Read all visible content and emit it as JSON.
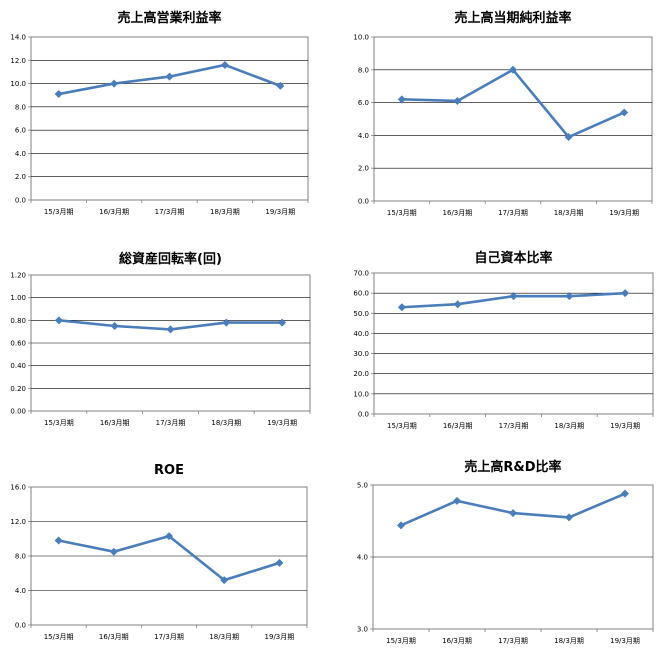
{
  "colors": {
    "series": "#4a7ebb",
    "grid": "#000000",
    "axis": "#808080"
  },
  "chart_data": [
    {
      "type": "line",
      "title": "売上高営業利益率",
      "categories": [
        "15/3月期",
        "16/3月期",
        "17/3月期",
        "18/3月期",
        "19/3月期"
      ],
      "series": [
        {
          "values": [
            9.1,
            10.0,
            10.6,
            11.6,
            9.8
          ]
        }
      ],
      "ylim": [
        0,
        14
      ],
      "yticks": [
        "0.0",
        "2.0",
        "4.0",
        "6.0",
        "8.0",
        "10.0",
        "12.0",
        "14.0"
      ],
      "grid": true
    },
    {
      "type": "line",
      "title": "売上高当期純利益率",
      "categories": [
        "15/3月期",
        "16/3月期",
        "17/3月期",
        "18/3月期",
        "19/3月期"
      ],
      "series": [
        {
          "values": [
            6.2,
            6.1,
            8.0,
            3.9,
            5.4
          ]
        }
      ],
      "ylim": [
        0,
        10
      ],
      "yticks": [
        "0.0",
        "2.0",
        "4.0",
        "6.0",
        "8.0",
        "10.0"
      ],
      "grid": true
    },
    {
      "type": "line",
      "title": "総資産回転率(回)",
      "categories": [
        "15/3月期",
        "16/3月期",
        "17/3月期",
        "18/3月期",
        "19/3月期"
      ],
      "series": [
        {
          "values": [
            0.8,
            0.75,
            0.72,
            0.78,
            0.78
          ]
        }
      ],
      "ylim": [
        0,
        1.2
      ],
      "yticks": [
        "0.00",
        "0.20",
        "0.40",
        "0.60",
        "0.80",
        "1.00",
        "1.20"
      ],
      "grid": true
    },
    {
      "type": "line",
      "title": "自己資本比率",
      "categories": [
        "15/3月期",
        "16/3月期",
        "17/3月期",
        "18/3月期",
        "19/3月期"
      ],
      "series": [
        {
          "values": [
            53.0,
            54.5,
            58.5,
            58.5,
            60.0
          ]
        }
      ],
      "ylim": [
        0,
        70
      ],
      "yticks": [
        "0.0",
        "10.0",
        "20.0",
        "30.0",
        "40.0",
        "50.0",
        "60.0",
        "70.0"
      ],
      "grid": true
    },
    {
      "type": "line",
      "title": "ROE",
      "categories": [
        "15/3月期",
        "16/3月期",
        "17/3月期",
        "18/3月期",
        "19/3月期"
      ],
      "series": [
        {
          "values": [
            9.8,
            8.5,
            10.3,
            5.2,
            7.2
          ]
        }
      ],
      "ylim": [
        0,
        16
      ],
      "yticks": [
        "0.0",
        "4.0",
        "8.0",
        "12.0",
        "16.0"
      ],
      "grid": true
    },
    {
      "type": "line",
      "title": "売上高R&D比率",
      "categories": [
        "15/3月期",
        "16/3月期",
        "17/3月期",
        "18/3月期",
        "19/3月期"
      ],
      "series": [
        {
          "values": [
            4.44,
            4.78,
            4.61,
            4.55,
            4.88
          ]
        }
      ],
      "ylim": [
        3,
        5
      ],
      "yticks": [
        "3.0",
        "4.0",
        "5.0"
      ],
      "grid": true
    }
  ]
}
